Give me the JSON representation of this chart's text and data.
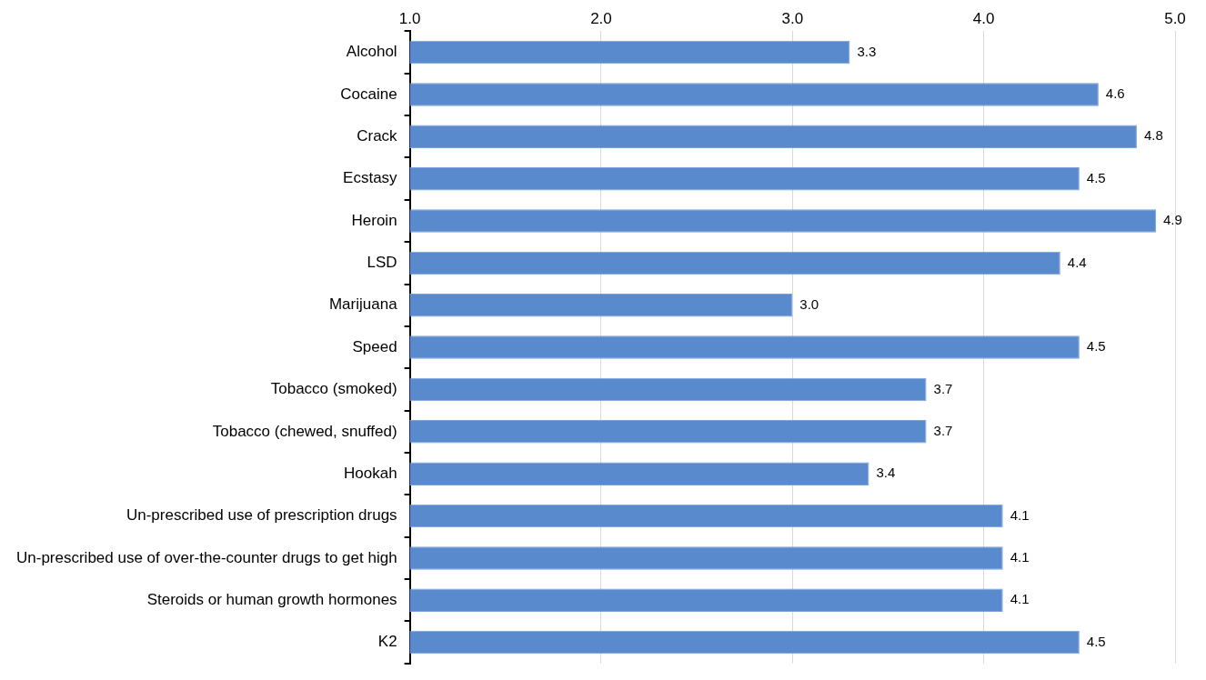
{
  "chart_data": {
    "type": "bar",
    "orientation": "horizontal",
    "categories": [
      "Alcohol",
      "Cocaine",
      "Crack",
      "Ecstasy",
      "Heroin",
      "LSD",
      "Marijuana",
      "Speed",
      "Tobacco (smoked)",
      "Tobacco (chewed, snuffed)",
      "Hookah",
      "Un-prescribed use of prescription drugs",
      "Un-prescribed use of over-the-counter drugs to get high",
      "Steroids or human growth hormones",
      "K2"
    ],
    "values": [
      3.3,
      4.6,
      4.8,
      4.5,
      4.9,
      4.4,
      3.0,
      4.5,
      3.7,
      3.7,
      3.4,
      4.1,
      4.1,
      4.1,
      4.5
    ],
    "value_labels": [
      "3.3",
      "4.6",
      "4.8",
      "4.5",
      "4.9",
      "4.4",
      "3.0",
      "4.5",
      "3.7",
      "3.7",
      "3.4",
      "4.1",
      "4.1",
      "4.1",
      "4.5"
    ],
    "color": "#5a8ace",
    "xlim": [
      1,
      5
    ],
    "xticks": [
      {
        "value": 1,
        "label": "1.0"
      },
      {
        "value": 2,
        "label": "2.0"
      },
      {
        "value": 3,
        "label": "3.0"
      },
      {
        "value": 4,
        "label": "4.0"
      },
      {
        "value": 5,
        "label": "5.0"
      }
    ],
    "grid": "x",
    "legend": false
  }
}
